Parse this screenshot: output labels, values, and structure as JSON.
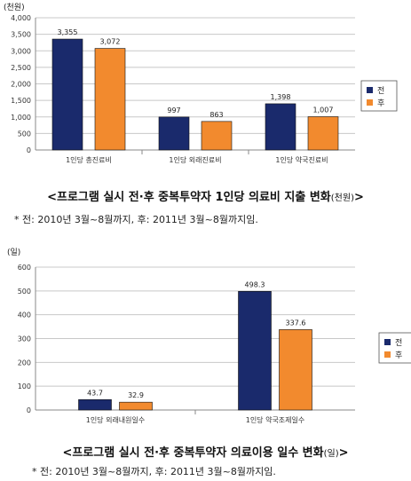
{
  "colors": {
    "before": "#1a2a6c",
    "after": "#f28a2e",
    "grid": "#c8c8c8",
    "axis": "#888888"
  },
  "chart_data": [
    {
      "type": "bar",
      "unit_label": "(천원)",
      "categories": [
        "1인당 총진료비",
        "1인당 외래진료비",
        "1인당 약국진료비"
      ],
      "series": [
        {
          "name": "전",
          "values": [
            3355,
            997,
            1398
          ],
          "labels": [
            "3,355",
            "997",
            "1,398"
          ]
        },
        {
          "name": "후",
          "values": [
            3072,
            863,
            1007
          ],
          "labels": [
            "3,072",
            "863",
            "1,007"
          ]
        }
      ],
      "yticks": [
        "0",
        "500",
        "1,000",
        "1,500",
        "2,000",
        "2,500",
        "3,000",
        "3,500",
        "4,000"
      ],
      "ylim": [
        0,
        4000
      ],
      "grid": true,
      "legend": "right"
    },
    {
      "type": "bar",
      "unit_label": "(일)",
      "categories": [
        "1인당 외래내원일수",
        "1인당 약국조제일수"
      ],
      "series": [
        {
          "name": "전",
          "values": [
            43.7,
            498.3
          ],
          "labels": [
            "43.7",
            "498.3"
          ]
        },
        {
          "name": "후",
          "values": [
            32.9,
            337.6
          ],
          "labels": [
            "32.9",
            "337.6"
          ]
        }
      ],
      "yticks": [
        "0",
        "100",
        "200",
        "300",
        "400",
        "500",
        "600"
      ],
      "ylim": [
        0,
        600
      ],
      "grid": true,
      "legend": "right"
    }
  ],
  "captions": {
    "chart1_title_main": "<프로그램 실시 전·후 중복투약자 1인당 의료비 지출 변화",
    "chart1_title_unit": "(천원)",
    "chart1_title_end": ">",
    "chart1_note": "* 전: 2010년 3월~8월까지, 후: 2011년 3월~8월까지임.",
    "chart2_title_main": "<프로그램 실시 전·후 중복투약자 의료이용 일수 변화",
    "chart2_title_unit": "(일)",
    "chart2_title_end": ">",
    "chart2_note": "* 전: 2010년 3월~8월까지, 후: 2011년 3월~8월까지임."
  }
}
